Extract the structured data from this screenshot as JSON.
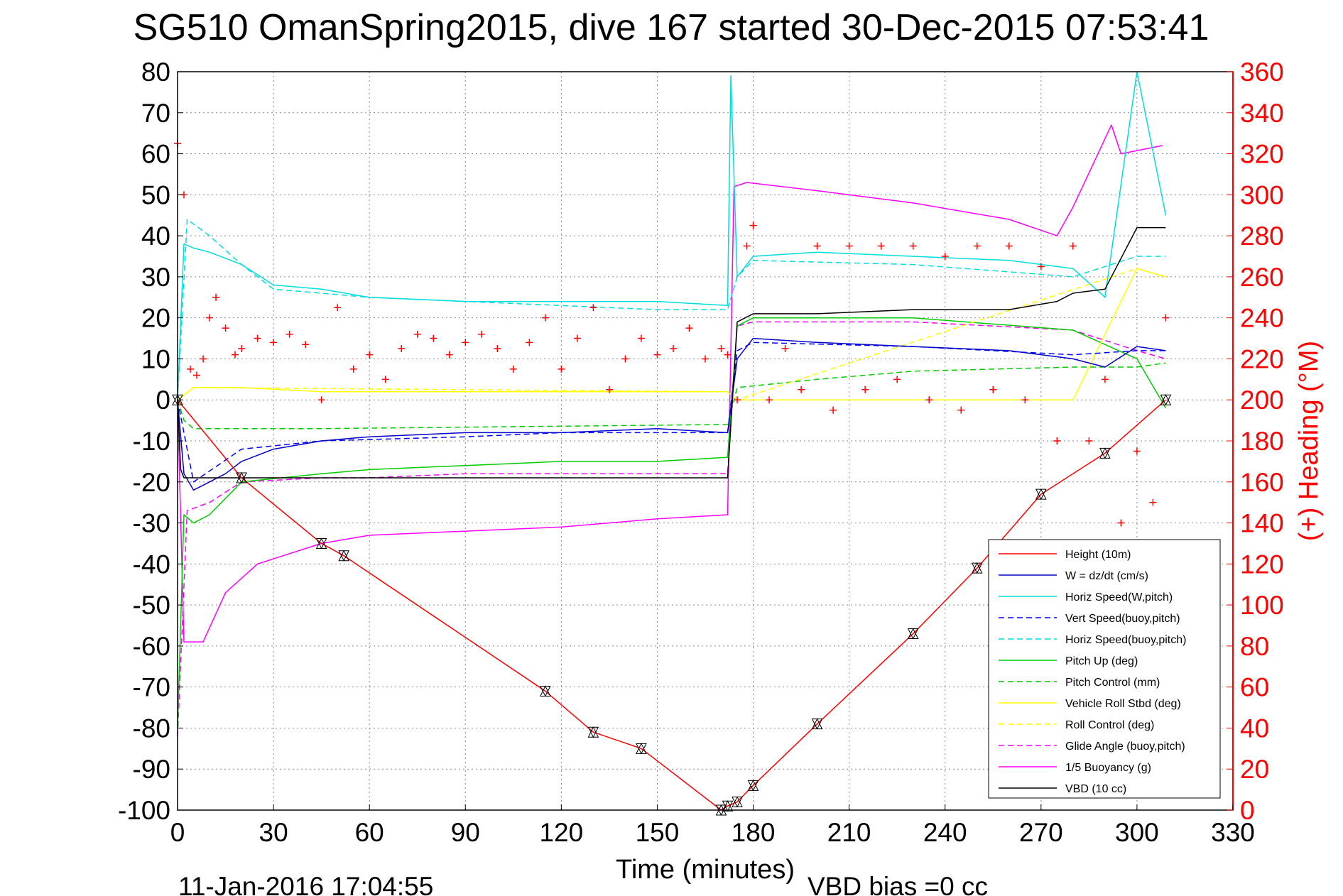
{
  "chart_data": {
    "type": "line",
    "title": "SG510 OmanSpring2015, dive 167 started 30-Dec-2015 07:53:41",
    "xlabel": "Time (minutes)",
    "ylabel_right": "(+) Heading (°M)",
    "xlim": [
      0,
      330
    ],
    "ylim": [
      -100,
      80
    ],
    "y2lim": [
      0,
      360
    ],
    "x_ticks": [
      "0",
      "30",
      "60",
      "90",
      "120",
      "150",
      "180",
      "210",
      "240",
      "270",
      "300",
      "330"
    ],
    "y_ticks": [
      "80",
      "70",
      "60",
      "50",
      "40",
      "30",
      "20",
      "10",
      "0",
      "-10",
      "-20",
      "-30",
      "-40",
      "-50",
      "-60",
      "-70",
      "-80",
      "-90",
      "-100"
    ],
    "y2_ticks": [
      "360",
      "340",
      "320",
      "300",
      "280",
      "260",
      "240",
      "220",
      "200",
      "180",
      "160",
      "140",
      "120",
      "100",
      "80",
      "60",
      "40",
      "20",
      "0"
    ],
    "grid": true,
    "legend_position": "lower-right",
    "footer_date": "11-Jan-2016 17:04:55",
    "footer_note": "VBD bias =0 cc",
    "series": [
      {
        "name": "Height (10m)",
        "color": "#ff0000",
        "style": "solid",
        "x": [
          0,
          20,
          45,
          52,
          115,
          130,
          145,
          170,
          172,
          175,
          180,
          200,
          230,
          250,
          270,
          290,
          309
        ],
        "y": [
          0,
          -19,
          -35,
          -38,
          -71,
          -81,
          -85,
          -100,
          -99,
          -98,
          -94,
          -79,
          -57,
          -41,
          -23,
          -13,
          0
        ]
      },
      {
        "name": "W = dz/dt (cm/s)",
        "color": "#0000cc",
        "style": "solid",
        "x": [
          0,
          2,
          5,
          10,
          15,
          20,
          30,
          45,
          60,
          90,
          120,
          150,
          172,
          175,
          180,
          200,
          230,
          260,
          280,
          290,
          300,
          309
        ],
        "y": [
          0,
          -18,
          -22,
          -20,
          -18,
          -15,
          -12,
          -10,
          -9,
          -8,
          -8,
          -7,
          -8,
          10,
          15,
          14,
          13,
          12,
          10,
          8,
          13,
          12
        ]
      },
      {
        "name": "Horiz Speed(W,pitch)",
        "color": "#00dddd",
        "style": "solid",
        "x": [
          0,
          2,
          5,
          10,
          20,
          30,
          45,
          60,
          90,
          120,
          150,
          172,
          173,
          175,
          180,
          200,
          230,
          260,
          280,
          290,
          300,
          309
        ],
        "y": [
          0,
          38,
          37,
          36,
          33,
          28,
          27,
          25,
          24,
          24,
          24,
          23,
          79,
          30,
          35,
          36,
          35,
          34,
          32,
          25,
          80,
          45
        ]
      },
      {
        "name": "Vert Speed(buoy,pitch)",
        "color": "#0000ff",
        "style": "dashed",
        "x": [
          0,
          5,
          20,
          45,
          90,
          120,
          150,
          172,
          175,
          180,
          230,
          280,
          300,
          309
        ],
        "y": [
          0,
          -20,
          -12,
          -10,
          -9,
          -8,
          -8,
          -8,
          12,
          14,
          13,
          11,
          12,
          12
        ]
      },
      {
        "name": "Horiz Speed(buoy,pitch)",
        "color": "#00dddd",
        "style": "dashed",
        "x": [
          0,
          3,
          10,
          20,
          30,
          60,
          90,
          120,
          150,
          172,
          175,
          180,
          230,
          280,
          300,
          309
        ],
        "y": [
          0,
          44,
          40,
          33,
          27,
          25,
          24,
          23,
          22,
          22,
          30,
          34,
          33,
          30,
          35,
          35
        ]
      },
      {
        "name": "Pitch Up (deg)",
        "color": "#00cc00",
        "style": "solid",
        "x": [
          0,
          2,
          5,
          10,
          20,
          45,
          60,
          90,
          120,
          150,
          172,
          175,
          180,
          230,
          280,
          300,
          309
        ],
        "y": [
          -80,
          -28,
          -30,
          -28,
          -20,
          -18,
          -17,
          -16,
          -15,
          -15,
          -14,
          18,
          20,
          20,
          17,
          10,
          -2
        ]
      },
      {
        "name": "Pitch Control (mm)",
        "color": "#00cc00",
        "style": "dashed",
        "x": [
          0,
          2,
          5,
          20,
          45,
          172,
          175,
          200,
          230,
          280,
          300,
          309
        ],
        "y": [
          0,
          -5,
          -7,
          -7,
          -7,
          -6,
          3,
          5,
          7,
          8,
          8,
          9
        ]
      },
      {
        "name": "Vehicle Roll Stbd (deg)",
        "color": "#ffff00",
        "style": "solid",
        "x": [
          0,
          5,
          20,
          45,
          60,
          90,
          120,
          150,
          172,
          175,
          180,
          230,
          280,
          300,
          309
        ],
        "y": [
          0,
          3,
          3,
          2,
          2,
          2,
          2,
          2,
          2,
          0,
          0,
          0,
          0,
          32,
          30
        ]
      },
      {
        "name": "Roll Control (deg)",
        "color": "#ffff00",
        "style": "dashed",
        "x": [
          0,
          5,
          172,
          175,
          300,
          309
        ],
        "y": [
          0,
          3,
          2,
          0,
          32,
          30
        ]
      },
      {
        "name": "Glide Angle (buoy,pitch)",
        "color": "#ff00ff",
        "style": "dashed",
        "x": [
          0,
          3,
          10,
          20,
          45,
          60,
          90,
          120,
          150,
          172,
          175,
          180,
          230,
          280,
          300,
          309
        ],
        "y": [
          -82,
          -27,
          -25,
          -20,
          -19,
          -19,
          -18,
          -18,
          -18,
          -18,
          18,
          19,
          19,
          17,
          12,
          10
        ]
      },
      {
        "name": "1/5 Buoyancy (g)",
        "color": "#ff00ff",
        "style": "solid",
        "x": [
          0,
          2,
          8,
          15,
          25,
          45,
          60,
          90,
          120,
          150,
          172,
          174,
          178,
          200,
          230,
          260,
          275,
          280,
          292,
          295,
          308
        ],
        "y": [
          0,
          -59,
          -59,
          -47,
          -40,
          -35,
          -33,
          -32,
          -31,
          -29,
          -28,
          52,
          53,
          51,
          48,
          44,
          40,
          47,
          67,
          60,
          62
        ]
      },
      {
        "name": "VBD (10 cc)",
        "color": "#000000",
        "style": "solid",
        "x": [
          0,
          1,
          2,
          20,
          45,
          60,
          90,
          120,
          150,
          170,
          172,
          175,
          180,
          200,
          230,
          260,
          275,
          280,
          290,
          300,
          309
        ],
        "y": [
          0,
          -17,
          -19,
          -19,
          -19,
          -19,
          -19,
          -19,
          -19,
          -19,
          -19,
          19,
          21,
          21,
          22,
          22,
          24,
          26,
          27,
          42,
          42
        ]
      }
    ],
    "heading_series": {
      "name": "Heading (°M)",
      "color": "#ff0000",
      "marker": "+",
      "axis": "right",
      "x": [
        0,
        2,
        4,
        6,
        8,
        10,
        12,
        15,
        18,
        20,
        25,
        30,
        35,
        40,
        45,
        50,
        55,
        60,
        65,
        70,
        75,
        80,
        85,
        90,
        95,
        100,
        105,
        110,
        115,
        120,
        125,
        130,
        135,
        140,
        145,
        150,
        155,
        160,
        165,
        170,
        172,
        175,
        178,
        180,
        185,
        190,
        195,
        200,
        205,
        210,
        215,
        220,
        225,
        230,
        235,
        240,
        245,
        250,
        255,
        260,
        265,
        270,
        275,
        280,
        285,
        290,
        295,
        300,
        305,
        309
      ],
      "y": [
        325,
        300,
        215,
        212,
        220,
        240,
        250,
        235,
        222,
        225,
        230,
        228,
        232,
        227,
        200,
        245,
        215,
        222,
        210,
        225,
        232,
        230,
        222,
        228,
        232,
        225,
        215,
        228,
        240,
        215,
        230,
        245,
        205,
        220,
        230,
        222,
        225,
        235,
        220,
        225,
        222,
        200,
        275,
        285,
        200,
        225,
        205,
        275,
        195,
        275,
        205,
        275,
        210,
        275,
        200,
        270,
        195,
        275,
        205,
        275,
        200,
        265,
        180,
        275,
        180,
        210,
        140,
        175,
        150,
        240
      ]
    }
  },
  "legend": [
    {
      "label": "Height (10m)",
      "color": "#ff0000",
      "dash": false
    },
    {
      "label": "W = dz/dt (cm/s)",
      "color": "#0000cc",
      "dash": false
    },
    {
      "label": "Horiz Speed(W,pitch)",
      "color": "#00dddd",
      "dash": false
    },
    {
      "label": "Vert Speed(buoy,pitch)",
      "color": "#0000ff",
      "dash": true
    },
    {
      "label": "Horiz Speed(buoy,pitch)",
      "color": "#00dddd",
      "dash": true
    },
    {
      "label": "Pitch Up (deg)",
      "color": "#00cc00",
      "dash": false
    },
    {
      "label": "Pitch Control (mm)",
      "color": "#00cc00",
      "dash": true
    },
    {
      "label": "Vehicle Roll Stbd (deg)",
      "color": "#ffff00",
      "dash": false
    },
    {
      "label": "Roll Control (deg)",
      "color": "#ffff00",
      "dash": true
    },
    {
      "label": "Glide Angle (buoy,pitch)",
      "color": "#ff00ff",
      "dash": true
    },
    {
      "label": "1/5 Buoyancy (g)",
      "color": "#ff00ff",
      "dash": false
    },
    {
      "label": "VBD (10 cc)",
      "color": "#000000",
      "dash": false
    }
  ]
}
